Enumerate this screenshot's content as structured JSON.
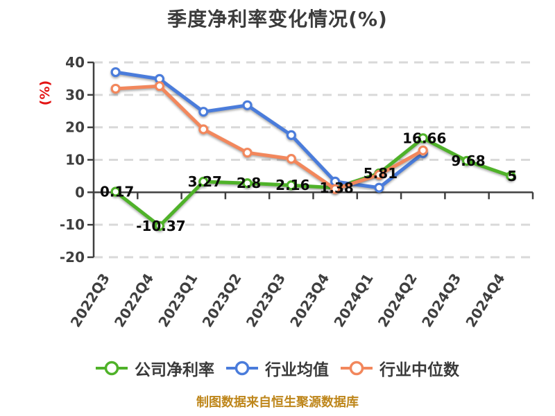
{
  "title": "季度净利率变化情况(%)",
  "footer": "制图数据来自恒生聚源数据库",
  "chart_data": {
    "type": "line",
    "title": "季度净利率变化情况(%)",
    "ylabel": "(%)",
    "ylabel_color": "#e31414",
    "xlabel": "",
    "ylim": [
      -20,
      40
    ],
    "y_ticks": [
      40,
      30,
      20,
      10,
      0,
      -10,
      -20
    ],
    "grid": "horizontal-dashed",
    "legend_position": "bottom",
    "categories": [
      "2022Q3",
      "2022Q4",
      "2023Q1",
      "2023Q2",
      "2023Q3",
      "2023Q4",
      "2024Q1",
      "2024Q2",
      "2024Q3",
      "2024Q4"
    ],
    "series": [
      {
        "key": "company-net-margin",
        "name": "公司净利率",
        "color": "#4fb229",
        "show_labels": true,
        "values": [
          0.17,
          -10.37,
          3.27,
          2.8,
          2.16,
          1.38,
          5.81,
          16.66,
          9.68,
          5
        ]
      },
      {
        "key": "industry-average",
        "name": "行业均值",
        "color": "#4a7cdb",
        "show_labels": false,
        "values": [
          37,
          34.9,
          24.8,
          26.8,
          17.6,
          3.3,
          1.4,
          12,
          null,
          null
        ]
      },
      {
        "key": "industry-median",
        "name": "行业中位数",
        "color": "#f2875c",
        "show_labels": false,
        "values": [
          31.9,
          32.7,
          19.4,
          12.2,
          10.3,
          1,
          5.4,
          12.9,
          null,
          null
        ]
      }
    ]
  },
  "colors": {
    "axis": "#3f3f3f",
    "gridline": "#d9d9d9",
    "tick_label": "#3f3f3f",
    "value_label": "#0a0a0a",
    "footer_text": "#be861b"
  }
}
